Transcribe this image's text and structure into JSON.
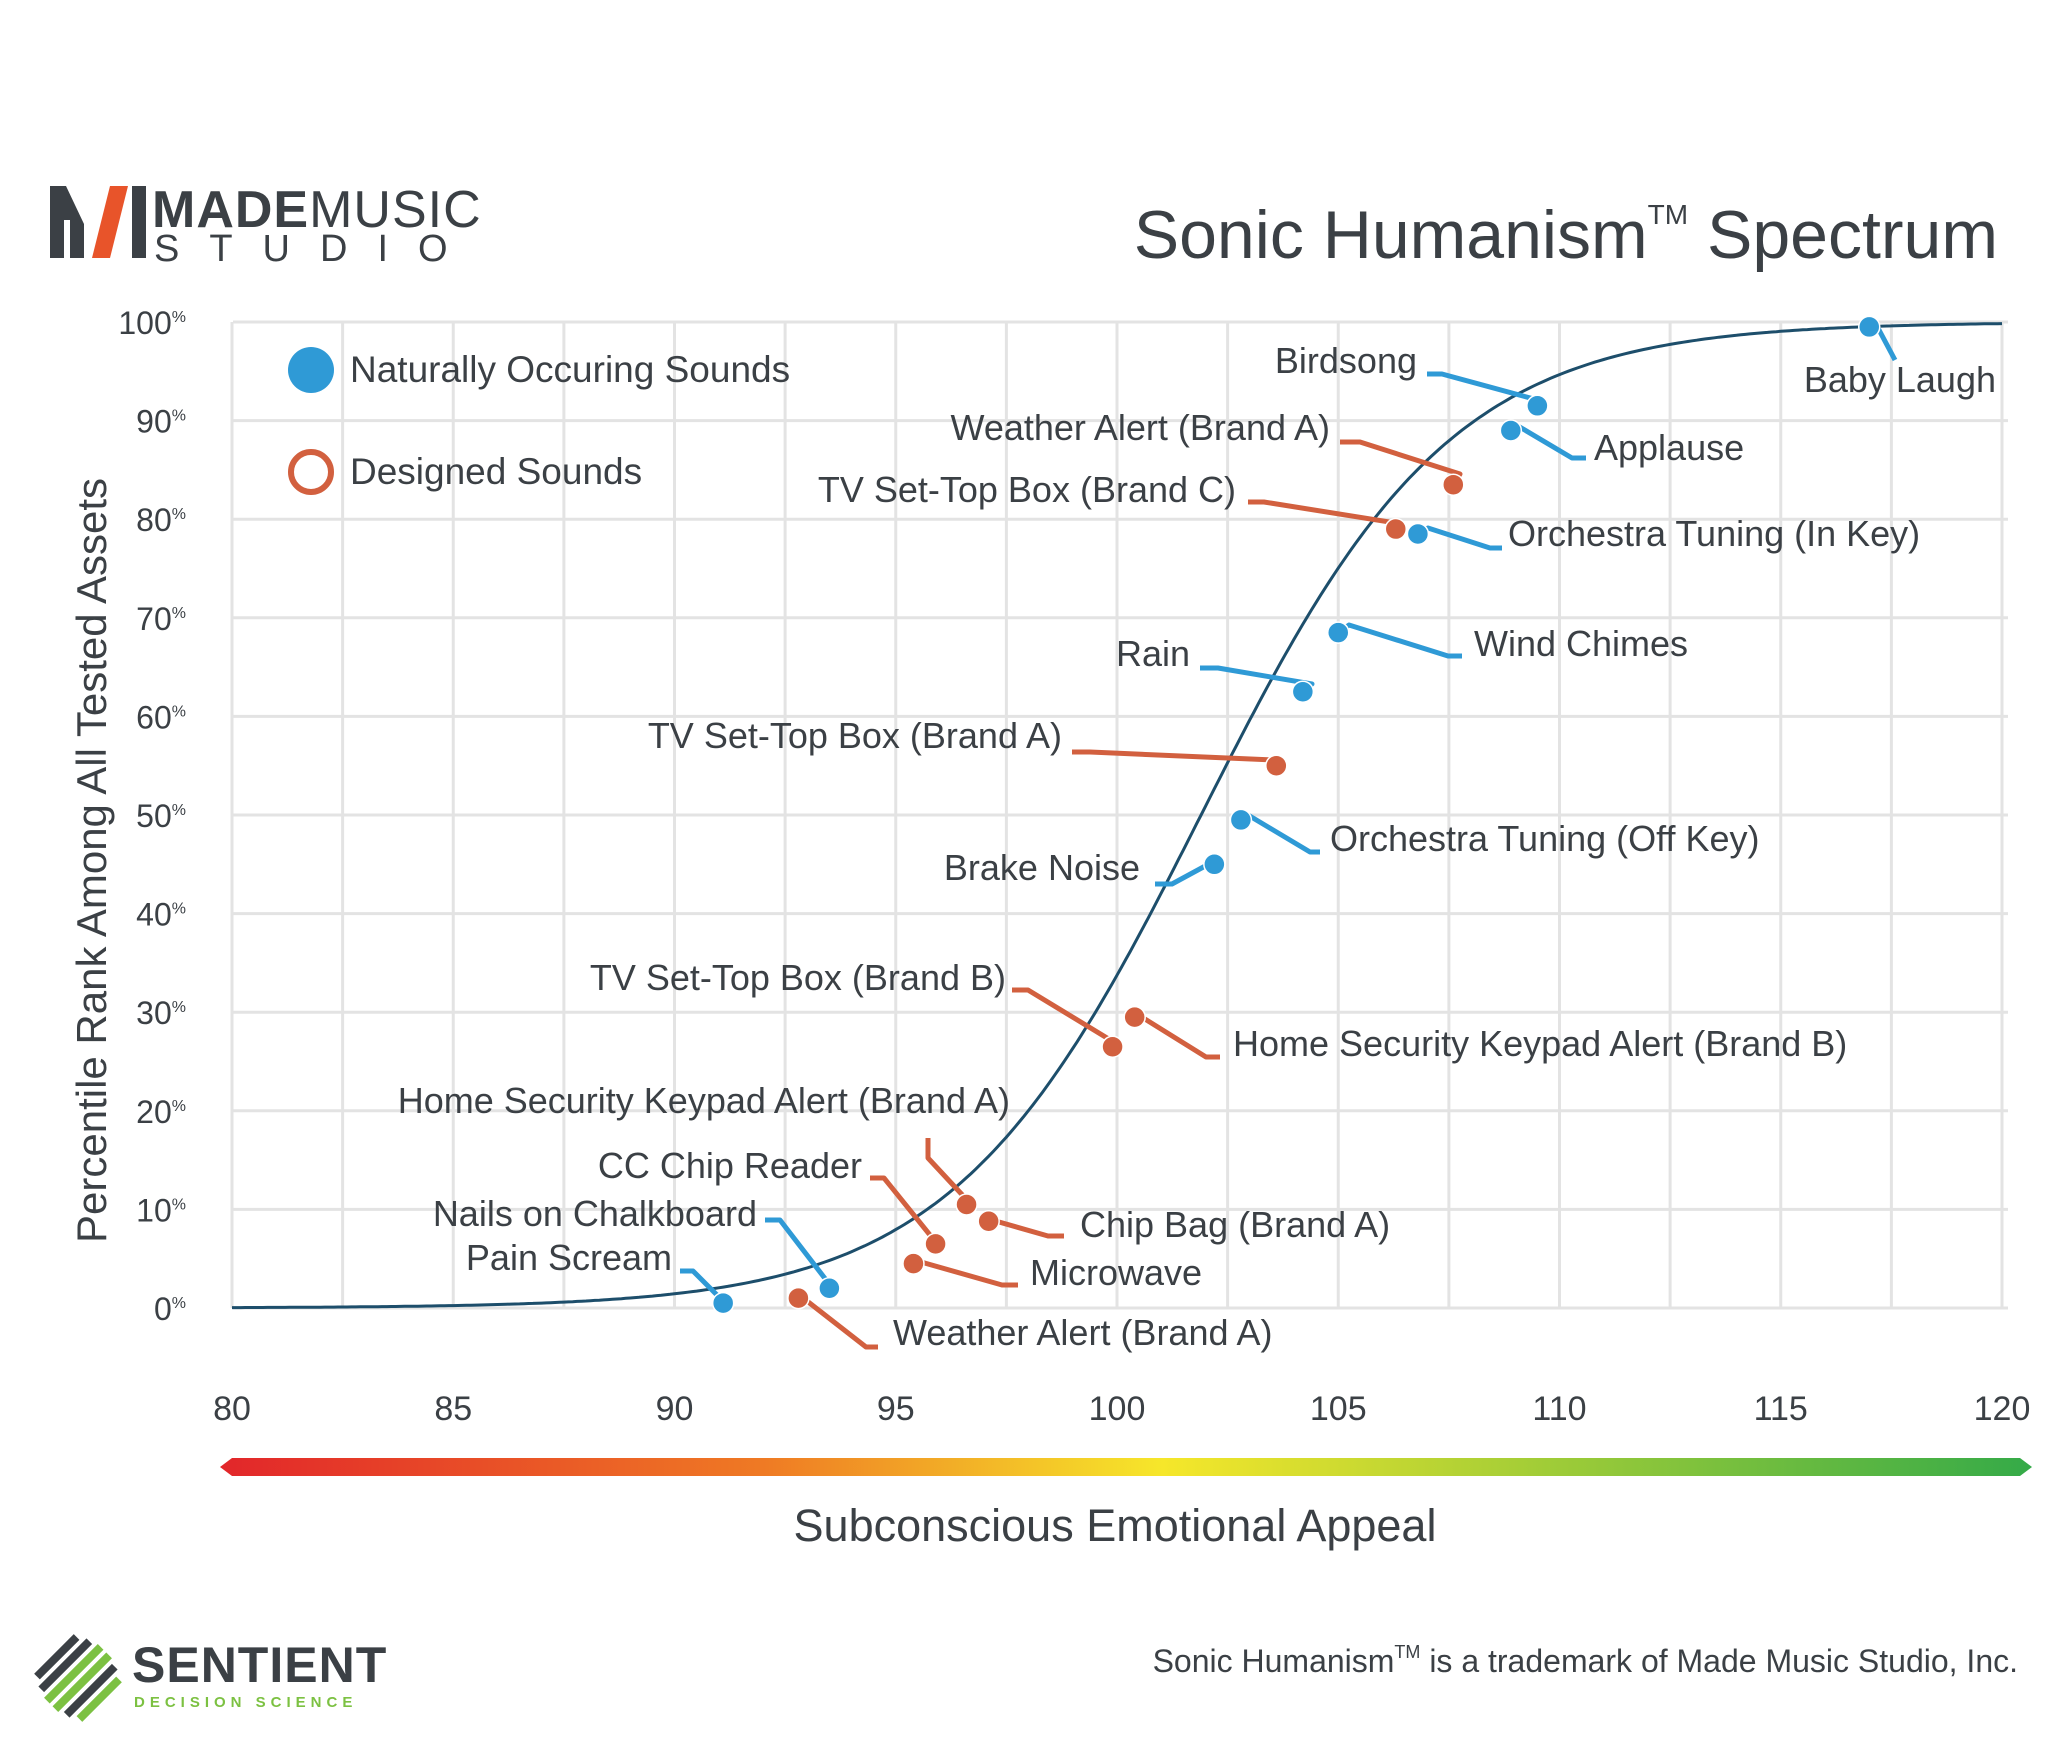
{
  "logo": {
    "made": "MADE",
    "music": "MUSIC",
    "studio": "STUDIO"
  },
  "header": {
    "title_main": "Sonic Humanism",
    "title_tm": "TM",
    "title_end": " Spectrum"
  },
  "footer": {
    "trademark_prefix": "Sonic Humanism",
    "trademark_tm": "TM",
    "trademark_rest": " is a trademark of Made Music Studio, Inc.",
    "partner_name": "SENTIENT",
    "partner_sub": "DECISION SCIENCE"
  },
  "colors": {
    "natural": "#2f9ad6",
    "designed": "#d2603f",
    "curve": "#1d4e6b",
    "grid": "#e3e3e3",
    "text": "#3b4045"
  },
  "chart_data": {
    "type": "scatter",
    "xlabel": "Subconscious Emotional Appeal",
    "ylabel": "Percentile Rank Among All Tested Assets",
    "xlim": [
      80,
      120
    ],
    "ylim": [
      0,
      100
    ],
    "xticks": [
      "80",
      "85",
      "90",
      "95",
      "100",
      "105",
      "110",
      "115",
      "120"
    ],
    "yticks": [
      {
        "num": "0",
        "unit": "%"
      },
      {
        "num": "10",
        "unit": "%"
      },
      {
        "num": "20",
        "unit": "%"
      },
      {
        "num": "30",
        "unit": "%"
      },
      {
        "num": "40",
        "unit": "%"
      },
      {
        "num": "50",
        "unit": "%"
      },
      {
        "num": "60",
        "unit": "%"
      },
      {
        "num": "70",
        "unit": "%"
      },
      {
        "num": "80",
        "unit": "%"
      },
      {
        "num": "90",
        "unit": "%"
      },
      {
        "num": "100",
        "unit": "%"
      }
    ],
    "grid": true,
    "legend_position": "top-left",
    "series": [
      {
        "name": "Naturally Occuring Sounds",
        "color": "#2f9ad6",
        "marker": "filled",
        "points": [
          {
            "label": "Pain Scream",
            "x": 91.1,
            "y": 0.5
          },
          {
            "label": "Nails on Chalkboard",
            "x": 93.5,
            "y": 2
          },
          {
            "label": "Brake Noise",
            "x": 102.2,
            "y": 45
          },
          {
            "label": "Orchestra Tuning (Off Key)",
            "x": 102.8,
            "y": 49.5
          },
          {
            "label": "Rain",
            "x": 104.2,
            "y": 62.5
          },
          {
            "label": "Wind Chimes",
            "x": 105.0,
            "y": 68.5
          },
          {
            "label": "Orchestra Tuning (In Key)",
            "x": 106.8,
            "y": 78.5
          },
          {
            "label": "Applause",
            "x": 108.9,
            "y": 89
          },
          {
            "label": "Birdsong",
            "x": 109.5,
            "y": 91.5
          },
          {
            "label": "Baby Laugh",
            "x": 117.0,
            "y": 99.5
          }
        ]
      },
      {
        "name": "Designed Sounds",
        "color": "#d2603f",
        "marker": "hollow",
        "points": [
          {
            "label": "Weather Alert (Brand A)",
            "x": 92.8,
            "y": 1
          },
          {
            "label": "Microwave",
            "x": 95.4,
            "y": 4.5
          },
          {
            "label": "CC Chip Reader",
            "x": 95.9,
            "y": 6.5
          },
          {
            "label": "Home Security Keypad Alert (Brand A)",
            "x": 96.6,
            "y": 10.5
          },
          {
            "label": "Chip Bag (Brand A)",
            "x": 97.1,
            "y": 8.8
          },
          {
            "label": "TV Set-Top Box (Brand B)",
            "x": 99.9,
            "y": 26.5
          },
          {
            "label": "Home Security Keypad Alert (Brand B)",
            "x": 100.4,
            "y": 29.5
          },
          {
            "label": "TV Set-Top Box (Brand A)",
            "x": 103.6,
            "y": 55
          },
          {
            "label": "TV Set-Top Box (Brand C)",
            "x": 106.3,
            "y": 79
          },
          {
            "label": "Weather Alert (Brand A)",
            "x": 107.6,
            "y": 83.5
          }
        ]
      }
    ]
  }
}
